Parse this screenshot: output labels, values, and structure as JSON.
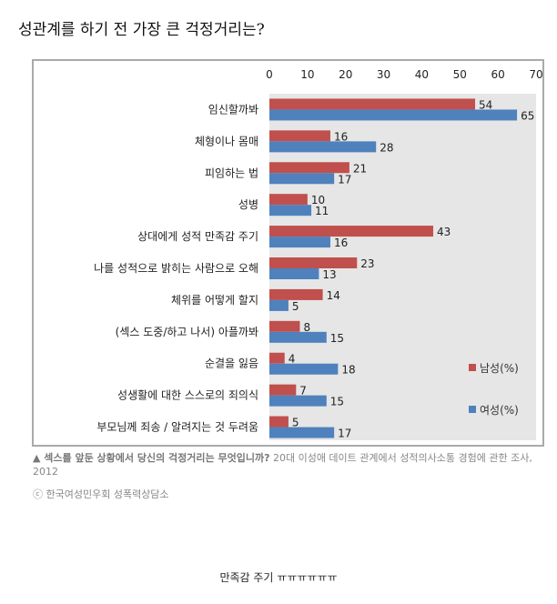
{
  "title": "성관계를 하기 전 가장 큰 걱정거리는?",
  "chart_data": {
    "type": "bar",
    "orientation": "horizontal",
    "categories": [
      "임신할까봐",
      "체형이나 몸매",
      "피임하는 법",
      "성병",
      "상대에게 성적 만족감 주기",
      "나를 성적으로 밝히는 사람으로 오해",
      "체위를 어떻게 할지",
      "(섹스 도중/하고 나서) 아플까봐",
      "순결을 잃음",
      "성생활에 대한 스스로의 죄의식",
      "부모님께 죄송 / 알려지는 것 두려움"
    ],
    "series": [
      {
        "name": "남성(%)",
        "color": "#c0504d",
        "values": [
          54,
          16,
          21,
          10,
          43,
          23,
          14,
          8,
          4,
          7,
          5
        ]
      },
      {
        "name": "여성(%)",
        "color": "#4f81bd",
        "values": [
          65,
          28,
          17,
          11,
          16,
          13,
          5,
          15,
          18,
          15,
          17
        ]
      }
    ],
    "xlim": [
      0,
      70
    ],
    "xticks": [
      0,
      10,
      20,
      30,
      40,
      50,
      60,
      70
    ],
    "axis_position": "top",
    "legend": "bottom-right",
    "grid": false
  },
  "caption": {
    "bold": "▲ 섹스를 앞둔 상황에서 당신의 걱정거리는 무엇입니까?",
    "normal": " 20대 이성애 데이트 관계에서 성적의사소통 경험에 관한 조사, 2012",
    "copyright": "ⓒ 한국여성민우회 성폭력상담소"
  },
  "comment": "만족감 주기 ㅠㅠㅠㅠㅠㅠ"
}
